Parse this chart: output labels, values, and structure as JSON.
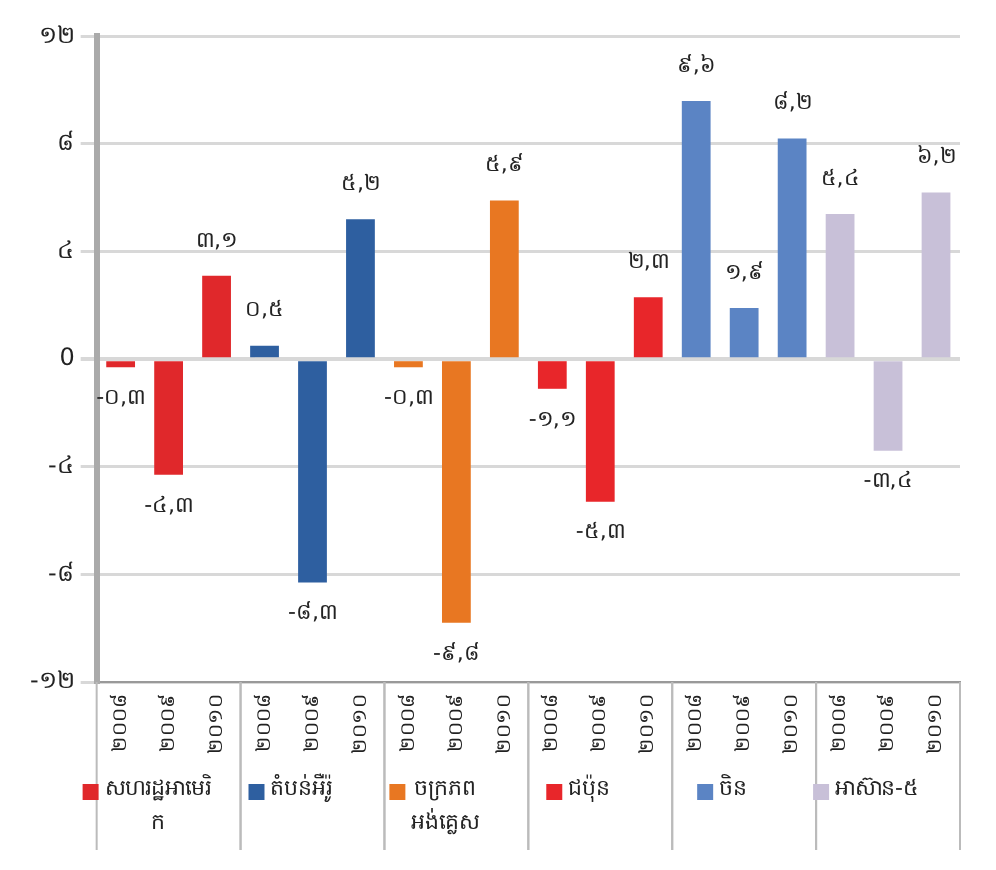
{
  "chart_data": {
    "type": "bar",
    "categories": [
      "២០០៨",
      "២០០៩",
      "២០១០",
      "២០០៨",
      "២០០៩",
      "២០១០",
      "២០០៨",
      "២០០៩",
      "២០១០",
      "២០០៨",
      "២០០៩",
      "២០១០",
      "២០០៨",
      "២០០៩",
      "២០១០",
      "២០០៨",
      "២០០៩",
      "២០១០"
    ],
    "series": [
      {
        "name": "សហរដ្ឋអាមេរិក",
        "color": "#e0282b",
        "values": [
          -0.3,
          -4.3,
          3.1,
          null,
          null,
          null,
          null,
          null,
          null,
          null,
          null,
          null,
          null,
          null,
          null,
          null,
          null,
          null
        ],
        "value_labels": [
          "-០,៣",
          "-៤,៣",
          "៣,១",
          null,
          null,
          null,
          null,
          null,
          null,
          null,
          null,
          null,
          null,
          null,
          null,
          null,
          null,
          null
        ]
      },
      {
        "name": "តំបន់អឺរ៉ូ",
        "color": "#2e5fa0",
        "values": [
          null,
          null,
          null,
          0.5,
          -8.3,
          5.2,
          null,
          null,
          null,
          null,
          null,
          null,
          null,
          null,
          null,
          null,
          null,
          null
        ],
        "value_labels": [
          null,
          null,
          null,
          "០,៥",
          "-៨,៣",
          "៥,២",
          null,
          null,
          null,
          null,
          null,
          null,
          null,
          null,
          null,
          null,
          null,
          null
        ]
      },
      {
        "name": "ចក្រភពអង់គ្លេស",
        "color": "#e87722",
        "values": [
          null,
          null,
          null,
          null,
          null,
          null,
          -0.3,
          -9.8,
          5.9,
          null,
          null,
          null,
          null,
          null,
          null,
          null,
          null,
          null
        ],
        "value_labels": [
          null,
          null,
          null,
          null,
          null,
          null,
          "-០,៣",
          "-៩,៨",
          "៥,៩",
          null,
          null,
          null,
          null,
          null,
          null,
          null,
          null,
          null
        ]
      },
      {
        "name": "ជប៉ុន",
        "color": "#e8262a",
        "values": [
          null,
          null,
          null,
          null,
          null,
          null,
          null,
          null,
          null,
          -1.1,
          -5.3,
          2.3,
          null,
          null,
          null,
          null,
          null,
          null
        ],
        "value_labels": [
          null,
          null,
          null,
          null,
          null,
          null,
          null,
          null,
          null,
          "-១,១",
          "-៥,៣",
          "២,៣",
          null,
          null,
          null,
          null,
          null,
          null
        ]
      },
      {
        "name": "ចិន",
        "color": "#5b84c4",
        "values": [
          null,
          null,
          null,
          null,
          null,
          null,
          null,
          null,
          null,
          null,
          null,
          null,
          9.6,
          1.9,
          8.2,
          null,
          null,
          null
        ],
        "value_labels": [
          null,
          null,
          null,
          null,
          null,
          null,
          null,
          null,
          null,
          null,
          null,
          null,
          "៩,៦",
          "១,៩",
          "៨,២",
          null,
          null,
          null
        ]
      },
      {
        "name": "អាស៊ាន-៥",
        "color": "#c8c0d8",
        "values": [
          null,
          null,
          null,
          null,
          null,
          null,
          null,
          null,
          null,
          null,
          null,
          null,
          null,
          null,
          null,
          5.4,
          -3.4,
          6.2
        ],
        "value_labels": [
          null,
          null,
          null,
          null,
          null,
          null,
          null,
          null,
          null,
          null,
          null,
          null,
          null,
          null,
          null,
          "៥,៤",
          "-៣,៤",
          "៦,២"
        ]
      }
    ],
    "ylim": [
      -12,
      12
    ],
    "yticks": [
      {
        "value": -12,
        "label": "-១២"
      },
      {
        "value": -8,
        "label": "-៨"
      },
      {
        "value": -4,
        "label": "-៤"
      },
      {
        "value": 0,
        "label": "0"
      },
      {
        "value": 4,
        "label": "៤"
      },
      {
        "value": 8,
        "label": "៨"
      },
      {
        "value": 12,
        "label": "១២"
      }
    ],
    "grid": "y",
    "legend": "bottom"
  }
}
